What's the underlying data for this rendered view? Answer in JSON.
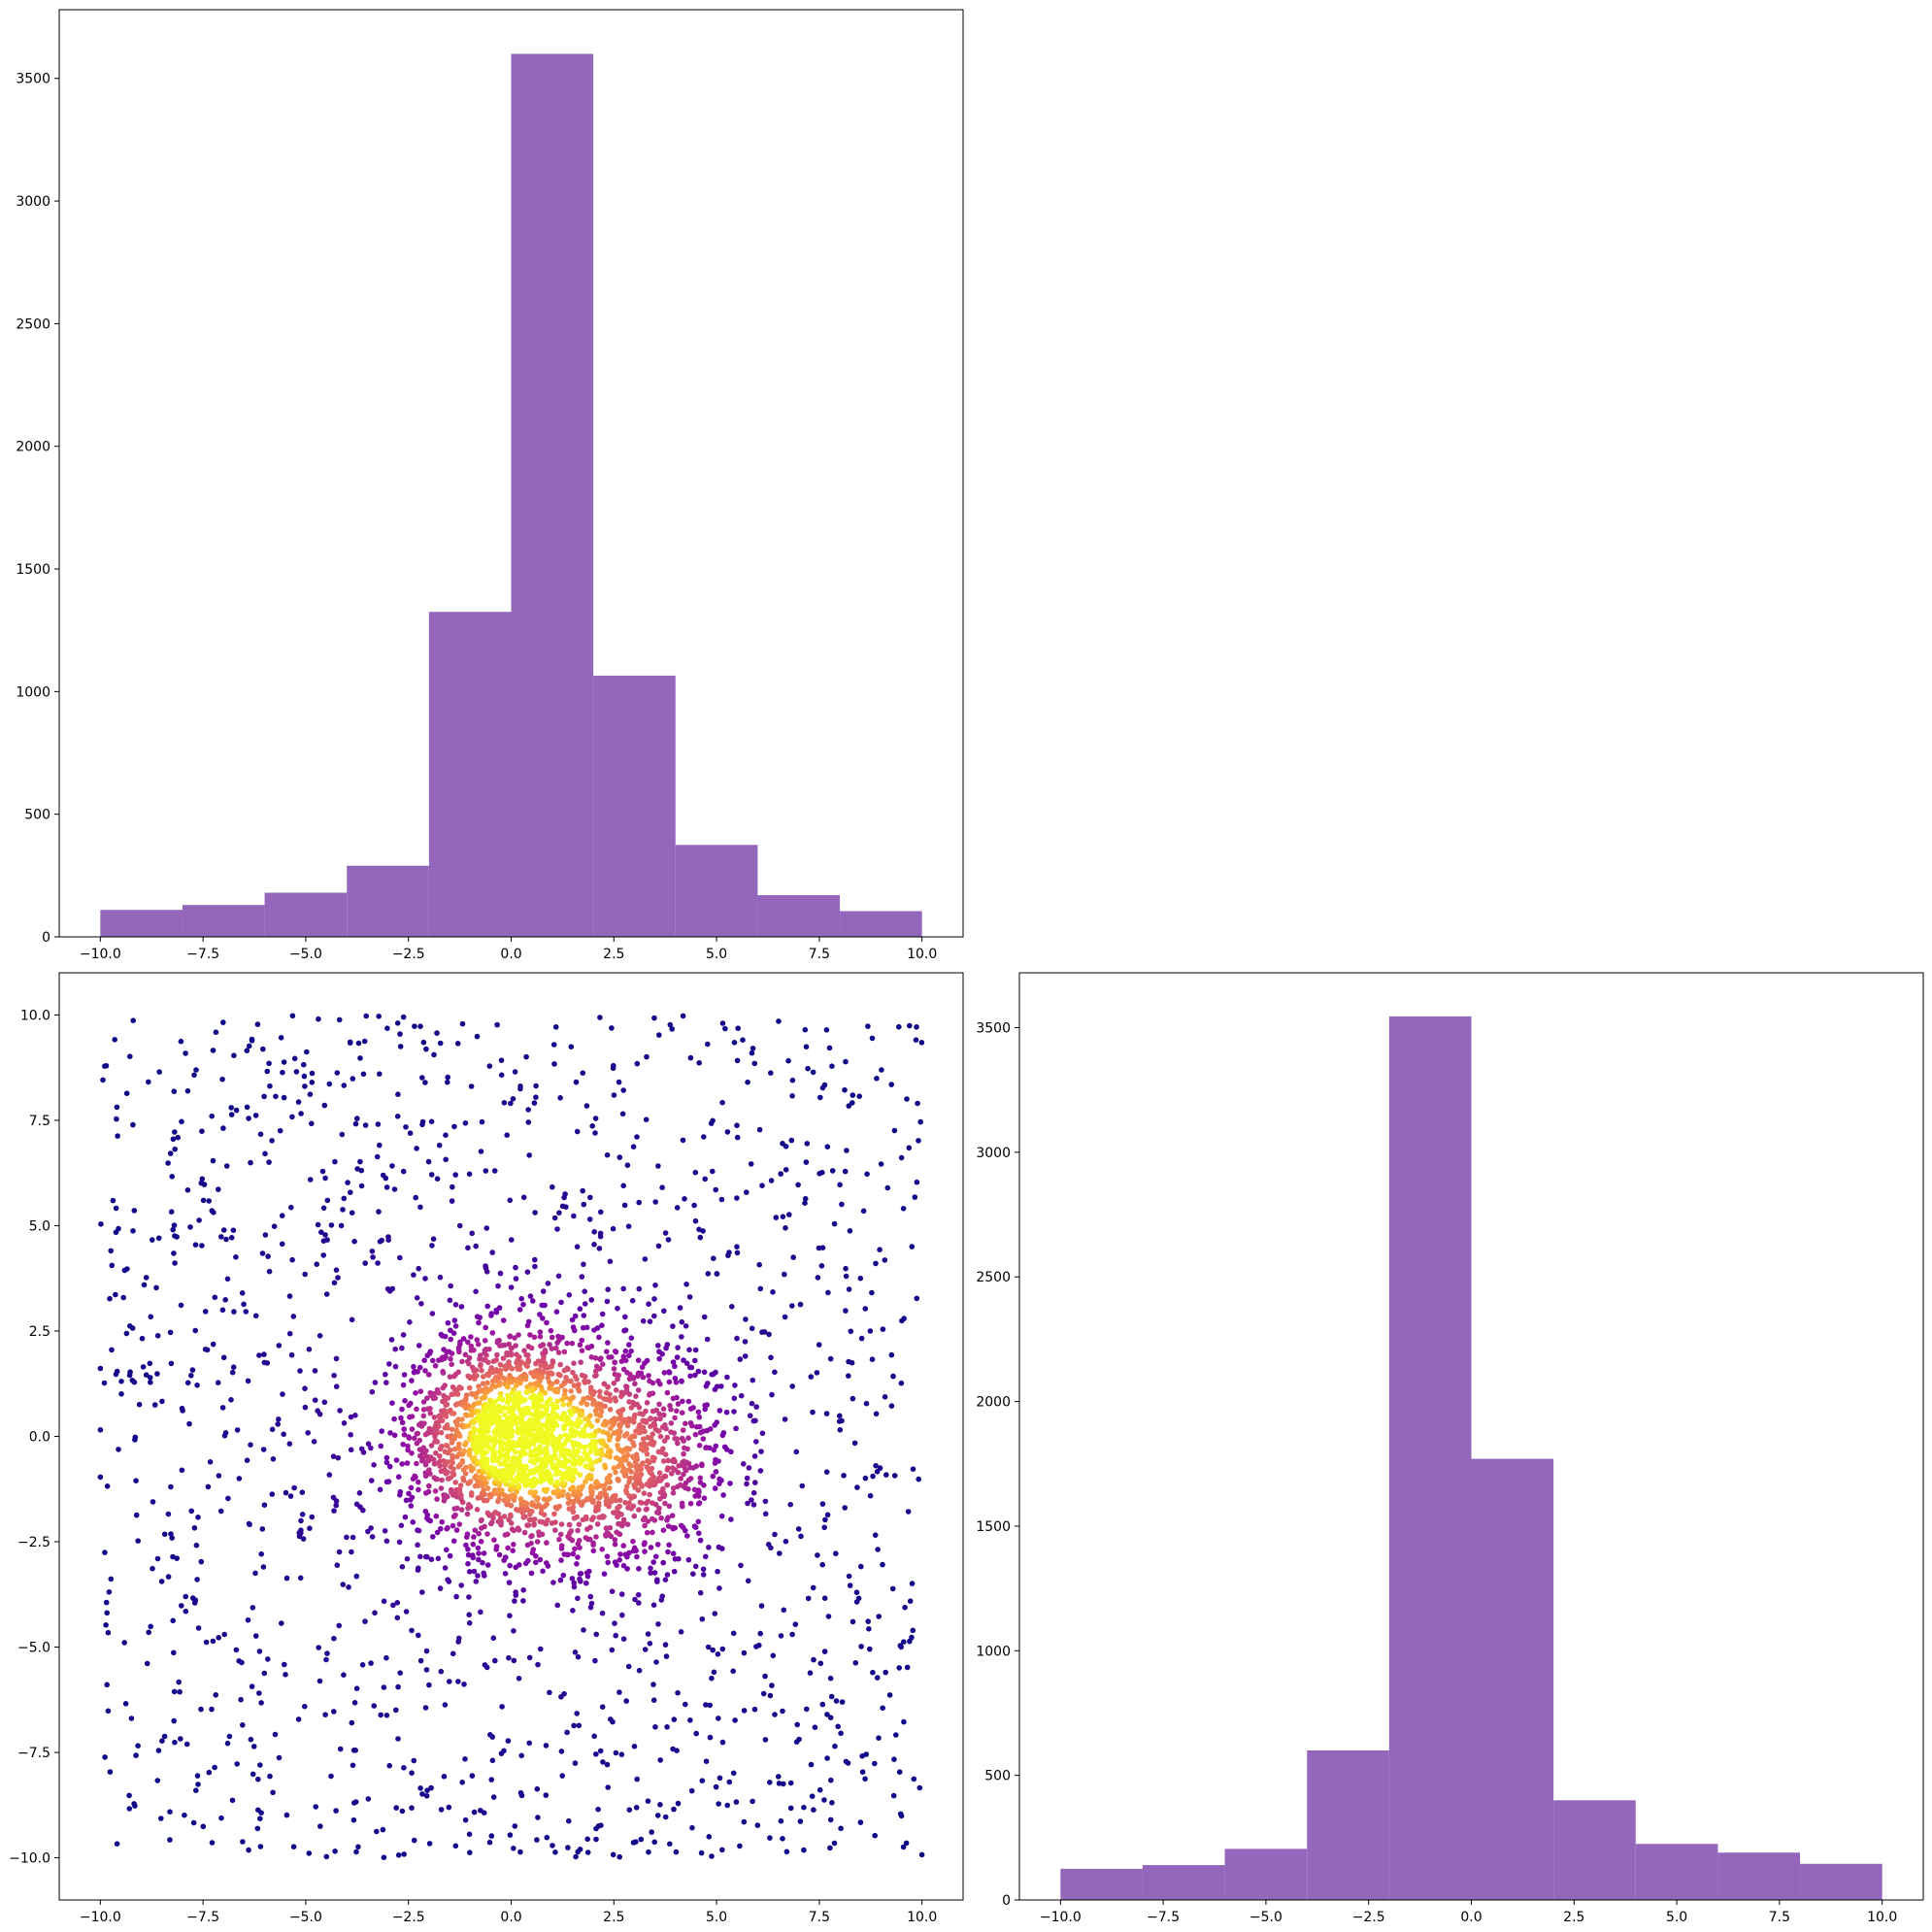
{
  "chart_data": [
    {
      "id": "top-left",
      "type": "bar",
      "subtype": "histogram",
      "title": "",
      "xlabel": "",
      "ylabel": "",
      "bin_edges": [
        -10,
        -8,
        -6,
        -4,
        -2,
        0,
        2,
        4,
        6,
        8,
        10
      ],
      "values": [
        110,
        130,
        180,
        290,
        1325,
        3600,
        1065,
        375,
        170,
        105
      ],
      "xlim": [
        -11,
        11
      ],
      "ylim": [
        0,
        3780
      ],
      "xticks": [
        -10,
        -7.5,
        -5,
        -2.5,
        0,
        2.5,
        5,
        7.5,
        10
      ],
      "xtick_labels": [
        "−10.0",
        "−7.5",
        "−5.0",
        "−2.5",
        "0.0",
        "2.5",
        "5.0",
        "7.5",
        "10.0"
      ],
      "yticks": [
        0,
        500,
        1000,
        1500,
        2000,
        2500,
        3000,
        3500
      ],
      "ytick_labels": [
        "0",
        "500",
        "1000",
        "1500",
        "2000",
        "2500",
        "3000",
        "3500"
      ],
      "color": "#9467bd",
      "grid": false
    },
    {
      "id": "bottom-left",
      "type": "scatter",
      "title": "",
      "xlabel": "",
      "ylabel": "",
      "description_points": "Uniform background on [-10,10]x[-10,10] plus dense Gaussian cluster centered at (0,0) and secondary cluster near (3,-0.5); points colored by local density (plasma colormap).",
      "xlim": [
        -11,
        11
      ],
      "ylim": [
        -11,
        11
      ],
      "xticks": [
        -10,
        -7.5,
        -5,
        -2.5,
        0,
        2.5,
        5,
        7.5,
        10
      ],
      "xtick_labels": [
        "−10.0",
        "−7.5",
        "−5.0",
        "−2.5",
        "0.0",
        "2.5",
        "5.0",
        "7.5",
        "10.0"
      ],
      "yticks": [
        -10,
        -7.5,
        -5,
        -2.5,
        0,
        2.5,
        5,
        7.5,
        10
      ],
      "ytick_labels": [
        "−10.0",
        "−7.5",
        "−5.0",
        "−2.5",
        "0.0",
        "2.5",
        "5.0",
        "7.5",
        "10.0"
      ],
      "colormap": "plasma",
      "point_groups": [
        {
          "kind": "uniform",
          "x_range": [
            -10,
            10
          ],
          "y_range": [
            -10,
            10
          ],
          "count": 1500
        },
        {
          "kind": "gaussian",
          "center": [
            0,
            0
          ],
          "sd": 1.3,
          "count": 1700
        },
        {
          "kind": "gaussian",
          "center": [
            3,
            -0.6
          ],
          "sd": 1.3,
          "count": 700
        }
      ],
      "grid": false
    },
    {
      "id": "bottom-right",
      "type": "bar",
      "subtype": "histogram",
      "title": "",
      "xlabel": "",
      "ylabel": "",
      "bin_edges": [
        -10,
        -8,
        -6,
        -4,
        -2,
        0,
        2,
        4,
        6,
        8,
        10
      ],
      "values": [
        125,
        140,
        205,
        600,
        3545,
        1770,
        400,
        225,
        190,
        145
      ],
      "xlim": [
        -11,
        11
      ],
      "ylim": [
        0,
        3720
      ],
      "xticks": [
        -10,
        -7.5,
        -5,
        -2.5,
        0,
        2.5,
        5,
        7.5,
        10
      ],
      "xtick_labels": [
        "−10.0",
        "−7.5",
        "−5.0",
        "−2.5",
        "0.0",
        "2.5",
        "5.0",
        "7.5",
        "10.0"
      ],
      "yticks": [
        0,
        500,
        1000,
        1500,
        2000,
        2500,
        3000,
        3500
      ],
      "ytick_labels": [
        "0",
        "500",
        "1000",
        "1500",
        "2000",
        "2500",
        "3000",
        "3500"
      ],
      "color": "#9467bd",
      "grid": false
    }
  ]
}
